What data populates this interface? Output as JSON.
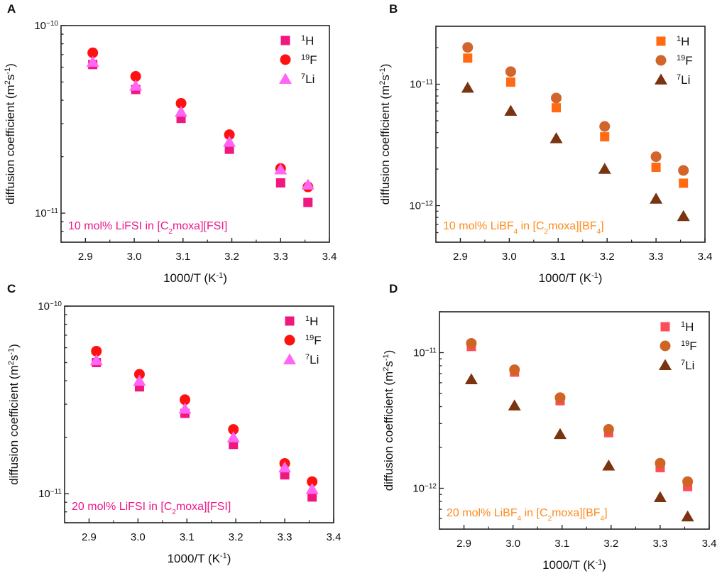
{
  "chart_data": [
    {
      "type": "scatter",
      "panel": "A",
      "title": "",
      "annotation": [
        {
          "t": "10 mol% LiFSI in [C"
        },
        {
          "t": "2",
          "sub": true
        },
        {
          "t": "moxa][FSI]"
        }
      ],
      "annotation_color": "#ee1889",
      "xlabel": [
        {
          "t": "1000/T (K"
        },
        {
          "t": "-1",
          "sup": true
        },
        {
          "t": ")"
        }
      ],
      "ylabel": [
        {
          "t": "diffusion coefficient (m"
        },
        {
          "t": "2",
          "sup": true
        },
        {
          "t": "s"
        },
        {
          "t": "-1",
          "sup": true
        },
        {
          "t": ")"
        }
      ],
      "xlim": [
        2.85,
        3.4
      ],
      "ylim": [
        7e-12,
        1e-10
      ],
      "yscale": "log",
      "xticks": [
        "2.9",
        "3.0",
        "3.1",
        "3.2",
        "3.3",
        "3.4"
      ],
      "yticks_exp": [
        -10,
        -11
      ],
      "legend_position": "top-right",
      "x": [
        2.915,
        3.003,
        3.096,
        3.195,
        3.3,
        3.356
      ],
      "series": [
        {
          "name_sup": "1",
          "name": "H",
          "marker": "square",
          "color": "#f0177f",
          "values": [
            6.2e-11,
            4.56e-11,
            3.2e-11,
            2.19e-11,
            1.45e-11,
            1.14e-11
          ]
        },
        {
          "name_sup": "19",
          "name": "F",
          "marker": "circle",
          "color": "#ff1111",
          "values": [
            7.16e-11,
            5.36e-11,
            3.85e-11,
            2.62e-11,
            1.73e-11,
            1.38e-11
          ]
        },
        {
          "name_sup": "7",
          "name": "Li",
          "marker": "triangle",
          "color": "#ff66f5",
          "values": [
            6.4e-11,
            4.78e-11,
            3.47e-11,
            2.4e-11,
            1.71e-11,
            1.42e-11
          ]
        }
      ]
    },
    {
      "type": "scatter",
      "panel": "B",
      "title": "",
      "annotation": [
        {
          "t": "10 mol% LiBF"
        },
        {
          "t": "4",
          "sub": true
        },
        {
          "t": " in [C"
        },
        {
          "t": "2",
          "sub": true
        },
        {
          "t": "moxa][BF"
        },
        {
          "t": "4",
          "sub": true
        },
        {
          "t": "]"
        }
      ],
      "annotation_color": "#ff8a1e",
      "xlabel": [
        {
          "t": "1000/T (K"
        },
        {
          "t": "-1",
          "sup": true
        },
        {
          "t": ")"
        }
      ],
      "ylabel": [
        {
          "t": "diffusion coefficient (m"
        },
        {
          "t": "2",
          "sup": true
        },
        {
          "t": "s"
        },
        {
          "t": "-1",
          "sup": true
        },
        {
          "t": ")"
        }
      ],
      "xlim": [
        2.85,
        3.4
      ],
      "ylim": [
        5e-13,
        3e-11
      ],
      "yscale": "log",
      "xticks": [
        "2.9",
        "3.0",
        "3.1",
        "3.2",
        "3.3",
        "3.4"
      ],
      "yticks_exp": [
        -11,
        -12
      ],
      "legend_position": "top-right",
      "x": [
        2.915,
        3.003,
        3.096,
        3.195,
        3.3,
        3.356
      ],
      "series": [
        {
          "name_sup": "1",
          "name": "H",
          "marker": "square",
          "color": "#ff6a12",
          "values": [
            1.64e-11,
            1.04e-11,
            6.4e-12,
            3.69e-12,
            2.07e-12,
            1.53e-12
          ]
        },
        {
          "name_sup": "19",
          "name": "F",
          "marker": "circle",
          "color": "#d1652c",
          "values": [
            2.01e-11,
            1.27e-11,
            7.7e-12,
            4.49e-12,
            2.53e-12,
            1.95e-12
          ]
        },
        {
          "name_sup": "7",
          "name": "Li",
          "marker": "triangle",
          "color": "#7a3410",
          "values": [
            9.35e-12,
            6.04e-12,
            3.59e-12,
            2.01e-12,
            1.14e-12,
            8.2e-13
          ]
        }
      ]
    },
    {
      "type": "scatter",
      "panel": "C",
      "title": "",
      "annotation": [
        {
          "t": "20 mol% LiFSI in [C"
        },
        {
          "t": "2",
          "sub": true
        },
        {
          "t": "moxa][FSI]"
        }
      ],
      "annotation_color": "#ee1889",
      "xlabel": [
        {
          "t": "1000/T (K"
        },
        {
          "t": "-1",
          "sup": true
        },
        {
          "t": ")"
        }
      ],
      "ylabel": [
        {
          "t": "diffusion coefficient (m"
        },
        {
          "t": "2",
          "sup": true
        },
        {
          "t": "s"
        },
        {
          "t": "-1",
          "sup": true
        },
        {
          "t": ")"
        }
      ],
      "xlim": [
        2.85,
        3.4
      ],
      "ylim": [
        7e-12,
        1e-10
      ],
      "yscale": "log",
      "xticks": [
        "2.9",
        "3.0",
        "3.1",
        "3.2",
        "3.3",
        "3.4"
      ],
      "yticks_exp": [
        -10,
        -11
      ],
      "legend_position": "top-right",
      "x": [
        2.915,
        3.003,
        3.096,
        3.195,
        3.3,
        3.356
      ],
      "series": [
        {
          "name_sup": "1",
          "name": "H",
          "marker": "square",
          "color": "#f0177f",
          "values": [
            5e-11,
            3.71e-11,
            2.68e-11,
            1.83e-11,
            1.26e-11,
            9.6e-12
          ]
        },
        {
          "name_sup": "19",
          "name": "F",
          "marker": "circle",
          "color": "#ff1111",
          "values": [
            5.75e-11,
            4.33e-11,
            3.17e-11,
            2.2e-11,
            1.45e-11,
            1.16e-11
          ]
        },
        {
          "name_sup": "7",
          "name": "Li",
          "marker": "triangle",
          "color": "#ff66f5",
          "values": [
            5.15e-11,
            4e-11,
            2.84e-11,
            2e-11,
            1.38e-11,
            1.06e-11
          ]
        }
      ]
    },
    {
      "type": "scatter",
      "panel": "D",
      "title": "",
      "annotation": [
        {
          "t": "20 mol% LiBF"
        },
        {
          "t": "4",
          "sub": true
        },
        {
          "t": " in [C"
        },
        {
          "t": "2",
          "sub": true
        },
        {
          "t": "moxa][BF"
        },
        {
          "t": "4",
          "sub": true
        },
        {
          "t": "]"
        }
      ],
      "annotation_color": "#ff8a1e",
      "xlabel": [
        {
          "t": "1000/T (K"
        },
        {
          "t": "-1",
          "sup": true
        },
        {
          "t": ")"
        }
      ],
      "ylabel": [
        {
          "t": "diffusion coefficient (m"
        },
        {
          "t": "2",
          "sup": true
        },
        {
          "t": "s"
        },
        {
          "t": "-1",
          "sup": true
        },
        {
          "t": ")"
        }
      ],
      "xlim": [
        2.85,
        3.4
      ],
      "ylim": [
        5e-13,
        2e-11
      ],
      "yscale": "log",
      "xticks": [
        "2.9",
        "3.0",
        "3.1",
        "3.2",
        "3.3",
        "3.4"
      ],
      "yticks_exp": [
        -11,
        -12
      ],
      "legend_position": "top-right",
      "x": [
        2.915,
        3.003,
        3.096,
        3.195,
        3.3,
        3.356
      ],
      "series": [
        {
          "name_sup": "1",
          "name": "H",
          "marker": "square",
          "color": "#ff4d58",
          "values": [
            1.11e-11,
            7.18e-12,
            4.42e-12,
            2.57e-12,
            1.42e-12,
            1.03e-12
          ]
        },
        {
          "name_sup": "19",
          "name": "F",
          "marker": "circle",
          "color": "#cf6424",
          "values": [
            1.17e-11,
            7.48e-12,
            4.66e-12,
            2.72e-12,
            1.53e-12,
            1.12e-12
          ]
        },
        {
          "name_sup": "7",
          "name": "Li",
          "marker": "triangle",
          "color": "#7a3410",
          "values": [
            6.36e-12,
            4.08e-12,
            2.51e-12,
            1.47e-12,
            8.6e-13,
            6.2e-13
          ]
        }
      ]
    }
  ]
}
